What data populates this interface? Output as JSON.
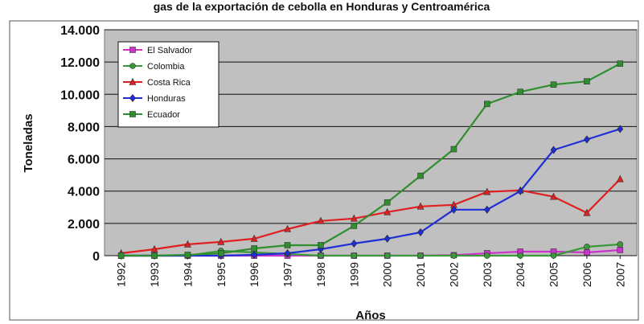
{
  "top_text": "gas de la exportación de cebolla en Honduras y Centroamérica",
  "chart_data": {
    "type": "line",
    "title": "",
    "xlabel": "Años",
    "ylabel": "Toneladas",
    "ylim": [
      0,
      14000
    ],
    "y_ticks": [
      "0",
      "2.000",
      "4.000",
      "6.000",
      "8.000",
      "10.000",
      "12.000",
      "14.000"
    ],
    "y_tick_values": [
      0,
      2000,
      4000,
      6000,
      8000,
      10000,
      12000,
      14000
    ],
    "x": [
      "1992",
      "1993",
      "1994",
      "1995",
      "1996",
      "1997",
      "1998",
      "1999",
      "2000",
      "2001",
      "2002",
      "2003",
      "2004",
      "2005",
      "2006",
      "2007"
    ],
    "grid": true,
    "legend_position": "top-left",
    "plot_background": "#c0c0c0",
    "series": [
      {
        "name": "El Salvador",
        "color": "#cc33cc",
        "marker": "square",
        "values": [
          0,
          0,
          0,
          0,
          0,
          0,
          0,
          0,
          0,
          0,
          30,
          150,
          250,
          250,
          200,
          350
        ]
      },
      {
        "name": "Colombia",
        "color": "#3a9a3a",
        "marker": "circle",
        "values": [
          0,
          0,
          0,
          300,
          200,
          100,
          0,
          0,
          0,
          0,
          0,
          0,
          0,
          0,
          550,
          700
        ]
      },
      {
        "name": "Costa Rica",
        "color": "#e02020",
        "marker": "triangle",
        "values": [
          150,
          400,
          700,
          850,
          1050,
          1650,
          2150,
          2300,
          2700,
          3050,
          3150,
          3950,
          4050,
          3650,
          2650,
          4750
        ]
      },
      {
        "name": "Honduras",
        "color": "#1f2ed6",
        "marker": "diamond",
        "values": [
          0,
          0,
          0,
          0,
          50,
          150,
          400,
          750,
          1050,
          1450,
          2850,
          2850,
          4000,
          6550,
          7200,
          7850
        ]
      },
      {
        "name": "Ecuador",
        "color": "#2f8f2f",
        "marker": "square",
        "values": [
          0,
          0,
          50,
          150,
          450,
          650,
          650,
          1850,
          3300,
          4950,
          6600,
          9400,
          10150,
          10600,
          10800,
          11900
        ]
      }
    ]
  }
}
